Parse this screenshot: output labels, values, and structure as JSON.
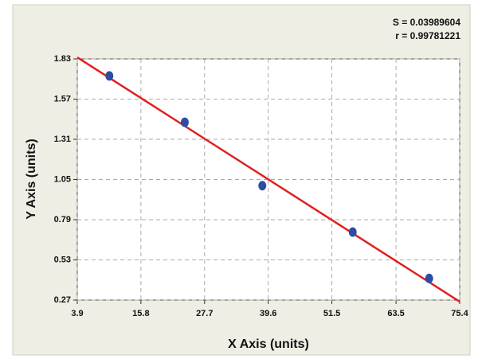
{
  "chart_data": {
    "type": "scatter",
    "x_label": "X Axis (units)",
    "y_label": "Y Axis (units)",
    "annotations": [
      "S = 0.03989604",
      "r = 0.99781221"
    ],
    "series": [
      {
        "color": "#2c4da3",
        "x": [
          9.9,
          24.0,
          38.5,
          55.4,
          69.7
        ],
        "values": [
          1.72,
          1.42,
          1.01,
          0.71,
          0.41
        ]
      }
    ],
    "fit_line": {
      "color": "#e02020",
      "x": [
        3.9,
        75.4
      ],
      "values": [
        1.84,
        0.26
      ]
    },
    "xlim": [
      3.9,
      75.4
    ],
    "ylim": [
      0.27,
      1.83
    ],
    "xticks": [
      3.9,
      15.8,
      27.7,
      39.6,
      51.5,
      63.5,
      75.4
    ],
    "yticks": [
      0.27,
      0.53,
      0.79,
      1.05,
      1.31,
      1.57,
      1.83
    ],
    "grid": true
  }
}
